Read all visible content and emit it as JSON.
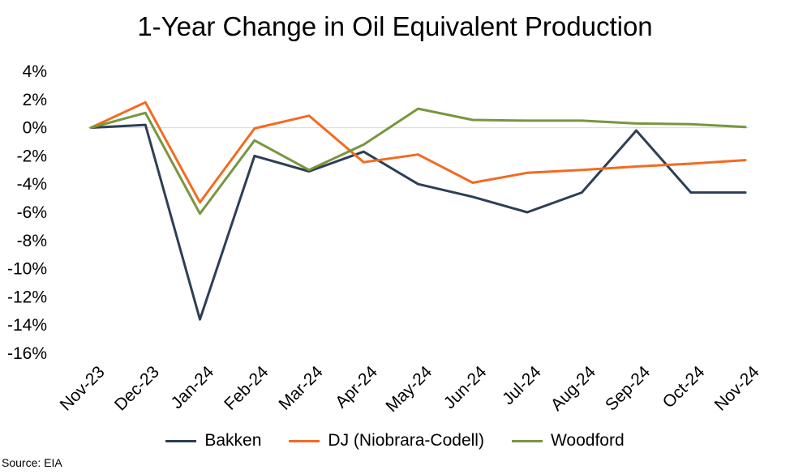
{
  "chart_data": {
    "type": "line",
    "title": "1-Year Change in Oil Equivalent Production",
    "categories": [
      "Nov-23",
      "Dec-23",
      "Jan-24",
      "Feb-24",
      "Mar-24",
      "Apr-24",
      "May-24",
      "Jun-24",
      "Jul-24",
      "Aug-24",
      "Sep-24",
      "Oct-24",
      "Nov-24"
    ],
    "ylim": [
      -16,
      4
    ],
    "yticks": [
      4,
      2,
      0,
      -2,
      -4,
      -6,
      -8,
      -10,
      -12,
      -14,
      -16
    ],
    "ytick_labels": [
      "4%",
      "2%",
      "0%",
      "-2%",
      "-4%",
      "-6%",
      "-8%",
      "-10%",
      "-12%",
      "-14%",
      "-16%"
    ],
    "xlabel": "",
    "ylabel": "",
    "grid": false,
    "legend_position": "bottom",
    "series": [
      {
        "name": "Bakken",
        "color": "#2E3F55",
        "values": [
          0.0,
          0.2,
          -13.6,
          -2.0,
          -3.1,
          -1.7,
          -4.0,
          -4.9,
          -6.0,
          -4.6,
          -0.2,
          -4.6,
          -4.6
        ]
      },
      {
        "name": "DJ (Niobrara-Codell)",
        "color": "#F26B21",
        "values": [
          0.0,
          1.8,
          -5.3,
          -0.05,
          0.85,
          -2.45,
          -1.9,
          -3.9,
          -3.2,
          -3.0,
          -2.75,
          -2.55,
          -2.3
        ]
      },
      {
        "name": "Woodford",
        "color": "#77963F",
        "values": [
          0.0,
          1.05,
          -6.1,
          -0.9,
          -3.0,
          -1.2,
          1.35,
          0.55,
          0.5,
          0.5,
          0.3,
          0.25,
          0.05
        ]
      }
    ]
  },
  "source": "Source: EIA"
}
